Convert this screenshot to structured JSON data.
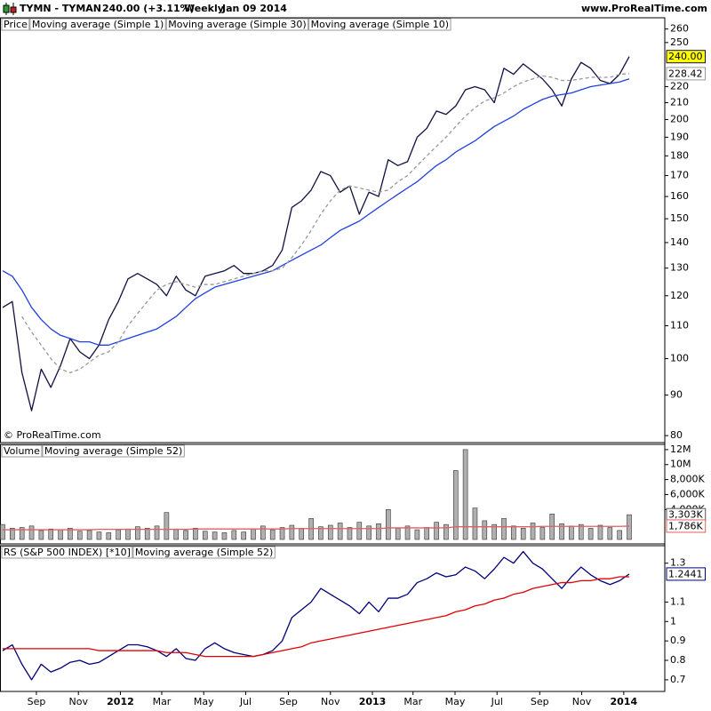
{
  "header": {
    "symbol": "TYMN - TYMAN",
    "quote": "240.00 (+3.11%)",
    "period": "Weekly",
    "date": "Jan 09 2014",
    "site": "www.ProRealTime.com"
  },
  "chart_data": {
    "type": "stock",
    "x": [
      "2011-07-14",
      "2011-07-28",
      "2011-08-11",
      "2011-08-25",
      "2011-09-08",
      "2011-09-22",
      "2011-10-06",
      "2011-10-20",
      "2011-11-03",
      "2011-11-17",
      "2011-12-01",
      "2011-12-15",
      "2011-12-29",
      "2012-01-12",
      "2012-01-26",
      "2012-02-09",
      "2012-02-23",
      "2012-03-08",
      "2012-03-22",
      "2012-04-05",
      "2012-04-19",
      "2012-05-03",
      "2012-05-17",
      "2012-05-31",
      "2012-06-14",
      "2012-06-28",
      "2012-07-12",
      "2012-07-26",
      "2012-08-09",
      "2012-08-23",
      "2012-09-06",
      "2012-09-20",
      "2012-10-04",
      "2012-10-18",
      "2012-11-01",
      "2012-11-15",
      "2012-11-29",
      "2012-12-13",
      "2012-12-27",
      "2013-01-10",
      "2013-01-24",
      "2013-02-07",
      "2013-02-21",
      "2013-03-07",
      "2013-03-21",
      "2013-04-04",
      "2013-04-18",
      "2013-05-02",
      "2013-05-16",
      "2013-05-30",
      "2013-06-13",
      "2013-06-27",
      "2013-07-11",
      "2013-07-25",
      "2013-08-08",
      "2013-08-22",
      "2013-09-05",
      "2013-09-19",
      "2013-10-03",
      "2013-10-17",
      "2013-10-31",
      "2013-11-14",
      "2013-11-28",
      "2013-12-12",
      "2013-12-26",
      "2014-01-09"
    ],
    "xlim": [
      "2011-07-14",
      "2014-01-09"
    ],
    "xticks": [
      {
        "value": "2011-09-01",
        "label": "Sep"
      },
      {
        "value": "2011-11-01",
        "label": "Nov"
      },
      {
        "value": "2012-01-01",
        "label": "2012"
      },
      {
        "value": "2012-03-01",
        "label": "Mar"
      },
      {
        "value": "2012-05-01",
        "label": "May"
      },
      {
        "value": "2012-07-01",
        "label": "Jul"
      },
      {
        "value": "2012-09-01",
        "label": "Sep"
      },
      {
        "value": "2012-11-01",
        "label": "Nov"
      },
      {
        "value": "2013-01-01",
        "label": "2013"
      },
      {
        "value": "2013-03-01",
        "label": "Mar"
      },
      {
        "value": "2013-05-01",
        "label": "May"
      },
      {
        "value": "2013-07-01",
        "label": "Jul"
      },
      {
        "value": "2013-09-01",
        "label": "Sep"
      },
      {
        "value": "2013-11-01",
        "label": "Nov"
      },
      {
        "value": "2014-01-01",
        "label": "2014"
      }
    ],
    "panels": [
      {
        "name": "Price",
        "log_scale": true,
        "ylim": [
          78.4,
          268.6
        ],
        "yticks": [
          80,
          90,
          100,
          110,
          120,
          130,
          140,
          150,
          160,
          170,
          180,
          190,
          200,
          210,
          220,
          250,
          260
        ],
        "copyright": "© ProRealTime.com",
        "series": [
          {
            "name": "Moving average (Simple 1)",
            "color": "#101040",
            "kind": "line",
            "last_value_label": "240.00",
            "label_bg": "#ffff00",
            "values": [
              116,
              118,
              96,
              86,
              97,
              92,
              98,
              106,
              102,
              100,
              104,
              112,
              118,
              126,
              128,
              126,
              124,
              120,
              127,
              122,
              120,
              127,
              128,
              129,
              131,
              128,
              128,
              129,
              131,
              137,
              155,
              158,
              163,
              172,
              170,
              162,
              165,
              152,
              162,
              160,
              178,
              175,
              177,
              190,
              195,
              205,
              203,
              208,
              218,
              220,
              218,
              210,
              232,
              228,
              235,
              230,
              225,
              218,
              208,
              225,
              236,
              232,
              224,
              222,
              228,
              240
            ]
          },
          {
            "name": "Moving average (Simple 30)",
            "color": "#2040e0",
            "kind": "line",
            "values": [
              129,
              127,
              122,
              116,
              112,
              109,
              107,
              106,
              105,
              105,
              104,
              104,
              105,
              106,
              107,
              108,
              109,
              111,
              113,
              116,
              119,
              121,
              123,
              124,
              125,
              126,
              127,
              128,
              129,
              131,
              133,
              135,
              137,
              139,
              142,
              145,
              147,
              149,
              152,
              155,
              158,
              161,
              164,
              167,
              171,
              175,
              178,
              182,
              185,
              188,
              192,
              196,
              199,
              202,
              206,
              209,
              212,
              214,
              215,
              216,
              218,
              220,
              221,
              222,
              223,
              225
            ]
          },
          {
            "name": "Moving average (Simple 10)",
            "color": "#999999",
            "kind": "line",
            "dashed": true,
            "show_last": true,
            "values": [
              null,
              null,
              113,
              108,
              104,
              100,
              97,
              96,
              97,
              99,
              101,
              102,
              105,
              110,
              114,
              118,
              122,
              124,
              125,
              124,
              123,
              124,
              124,
              125,
              126,
              127,
              128,
              129,
              129,
              130,
              134,
              139,
              145,
              152,
              158,
              163,
              165,
              164,
              163,
              162,
              163,
              167,
              170,
              175,
              180,
              185,
              190,
              196,
              202,
              207,
              211,
              213,
              216,
              220,
              223,
              225,
              227,
              226,
              224,
              224,
              225,
              226,
              226,
              226,
              228,
              228.42
            ]
          }
        ]
      },
      {
        "name": "Volume",
        "ylim": [
          0,
          12700000
        ],
        "yticks": [
          {
            "value": 4000000,
            "label": "4,000K"
          },
          {
            "value": 6000000,
            "label": "6,000K"
          },
          {
            "value": 8000000,
            "label": "8,000K"
          },
          {
            "value": 10000000,
            "label": "10M"
          },
          {
            "value": 12000000,
            "label": "12M"
          }
        ],
        "series": [
          {
            "name": "Volume",
            "color": "#b0b0b0",
            "kind": "bar",
            "last_value_label": "3,303K",
            "values": [
              2000000,
              1500000,
              1600000,
              1800000,
              1200000,
              1400000,
              1300000,
              1500000,
              1100000,
              1200000,
              1000000,
              900000,
              1300000,
              1400000,
              1700000,
              1500000,
              1800000,
              3600000,
              1400000,
              1200000,
              1500000,
              1100000,
              1000000,
              900000,
              1200000,
              1000000,
              1400000,
              1800000,
              1300000,
              1600000,
              1900000,
              1500000,
              2800000,
              1700000,
              1900000,
              2200000,
              1600000,
              2300000,
              1800000,
              2100000,
              4000000,
              1500000,
              1800000,
              1300000,
              1600000,
              2300000,
              2000000,
              9200000,
              12000000,
              4200000,
              2500000,
              2000000,
              2800000,
              1800000,
              1500000,
              2200000,
              1600000,
              3400000,
              2100000,
              1800000,
              2000000,
              1500000,
              1900000,
              1600000,
              1200000,
              3303000
            ]
          },
          {
            "name": "Moving average (Simple 52)",
            "color": "#e06060",
            "kind": "line",
            "last_value_label": "1,786K",
            "values": [
              1300000,
              1300000,
              1300000,
              1300000,
              1300000,
              1300000,
              1300000,
              1300000,
              1300000,
              1300000,
              1350000,
              1350000,
              1350000,
              1350000,
              1350000,
              1350000,
              1350000,
              1350000,
              1350000,
              1350000,
              1400000,
              1400000,
              1400000,
              1400000,
              1400000,
              1400000,
              1400000,
              1400000,
              1400000,
              1400000,
              1450000,
              1450000,
              1450000,
              1450000,
              1450000,
              1450000,
              1450000,
              1450000,
              1450000,
              1450000,
              1550000,
              1550000,
              1550000,
              1550000,
              1550000,
              1550000,
              1550000,
              1700000,
              1700000,
              1700000,
              1700000,
              1700000,
              1700000,
              1700000,
              1700000,
              1700000,
              1750000,
              1750000,
              1750000,
              1750000,
              1750000,
              1750000,
              1750000,
              1750000,
              1750000,
              1786000
            ]
          }
        ]
      },
      {
        "name": "RS (S&P 500 INDEX) [*10]",
        "ylim": [
          0.64,
          1.39
        ],
        "yticks": [
          0.7,
          0.8,
          0.9,
          1,
          1.1,
          1.3
        ],
        "series": [
          {
            "name": "RS (S&P 500 INDEX) [*10]",
            "color": "#00007a",
            "kind": "line",
            "show_last": true,
            "values": [
              0.85,
              0.88,
              0.78,
              0.7,
              0.78,
              0.74,
              0.76,
              0.79,
              0.8,
              0.78,
              0.79,
              0.82,
              0.85,
              0.88,
              0.88,
              0.87,
              0.85,
              0.82,
              0.86,
              0.81,
              0.8,
              0.86,
              0.89,
              0.86,
              0.84,
              0.83,
              0.82,
              0.83,
              0.85,
              0.9,
              1.02,
              1.06,
              1.1,
              1.17,
              1.14,
              1.11,
              1.08,
              1.04,
              1.1,
              1.05,
              1.12,
              1.12,
              1.14,
              1.2,
              1.22,
              1.25,
              1.23,
              1.24,
              1.28,
              1.26,
              1.22,
              1.27,
              1.33,
              1.3,
              1.36,
              1.3,
              1.27,
              1.22,
              1.17,
              1.23,
              1.28,
              1.24,
              1.21,
              1.19,
              1.21,
              1.2441
            ]
          },
          {
            "name": "Moving average (Simple 52)",
            "color": "#e00000",
            "kind": "line",
            "values": [
              0.86,
              0.86,
              0.86,
              0.86,
              0.86,
              0.86,
              0.86,
              0.86,
              0.86,
              0.86,
              0.85,
              0.85,
              0.85,
              0.85,
              0.85,
              0.85,
              0.85,
              0.84,
              0.84,
              0.84,
              0.83,
              0.82,
              0.82,
              0.82,
              0.82,
              0.82,
              0.82,
              0.83,
              0.84,
              0.85,
              0.86,
              0.87,
              0.89,
              0.9,
              0.91,
              0.92,
              0.93,
              0.94,
              0.95,
              0.96,
              0.97,
              0.98,
              0.99,
              1.0,
              1.01,
              1.02,
              1.03,
              1.05,
              1.06,
              1.08,
              1.09,
              1.11,
              1.12,
              1.14,
              1.15,
              1.17,
              1.18,
              1.19,
              1.2,
              1.2,
              1.21,
              1.21,
              1.22,
              1.22,
              1.23,
              1.23
            ]
          }
        ]
      }
    ]
  }
}
